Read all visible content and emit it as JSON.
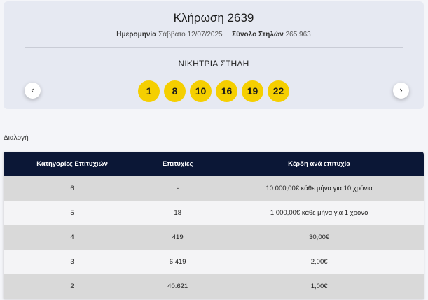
{
  "draw": {
    "title": "Κλήρωση 2639",
    "date_label": "Ημερομηνία",
    "date_value": "Σάββατο 12/07/2025",
    "total_label": "Σύνολο Στηλών",
    "total_value": "265.963",
    "winning_title": "ΝΙΚΗΤΡΙΑ ΣΤΗΛΗ",
    "numbers": [
      "1",
      "8",
      "10",
      "16",
      "19",
      "22"
    ],
    "prev_icon": "chevron-left-icon",
    "next_icon": "chevron-right-icon",
    "ball_color": "#f5cf00"
  },
  "section_label": "Διαλογή",
  "table": {
    "headers": [
      "Κατηγορίες Επιτυχιών",
      "Επιτυχίες",
      "Κέρδη ανά επιτυχία"
    ],
    "rows": [
      [
        "6",
        "-",
        "10.000,00€ κάθε μήνα για 10 χρόνια"
      ],
      [
        "5",
        "18",
        "1.000,00€ κάθε μήνα για 1 χρόνο"
      ],
      [
        "4",
        "419",
        "30,00€"
      ],
      [
        "3",
        "6.419",
        "2,00€"
      ],
      [
        "2",
        "40.621",
        "1,00€"
      ]
    ],
    "header_color": "#0b1736"
  }
}
